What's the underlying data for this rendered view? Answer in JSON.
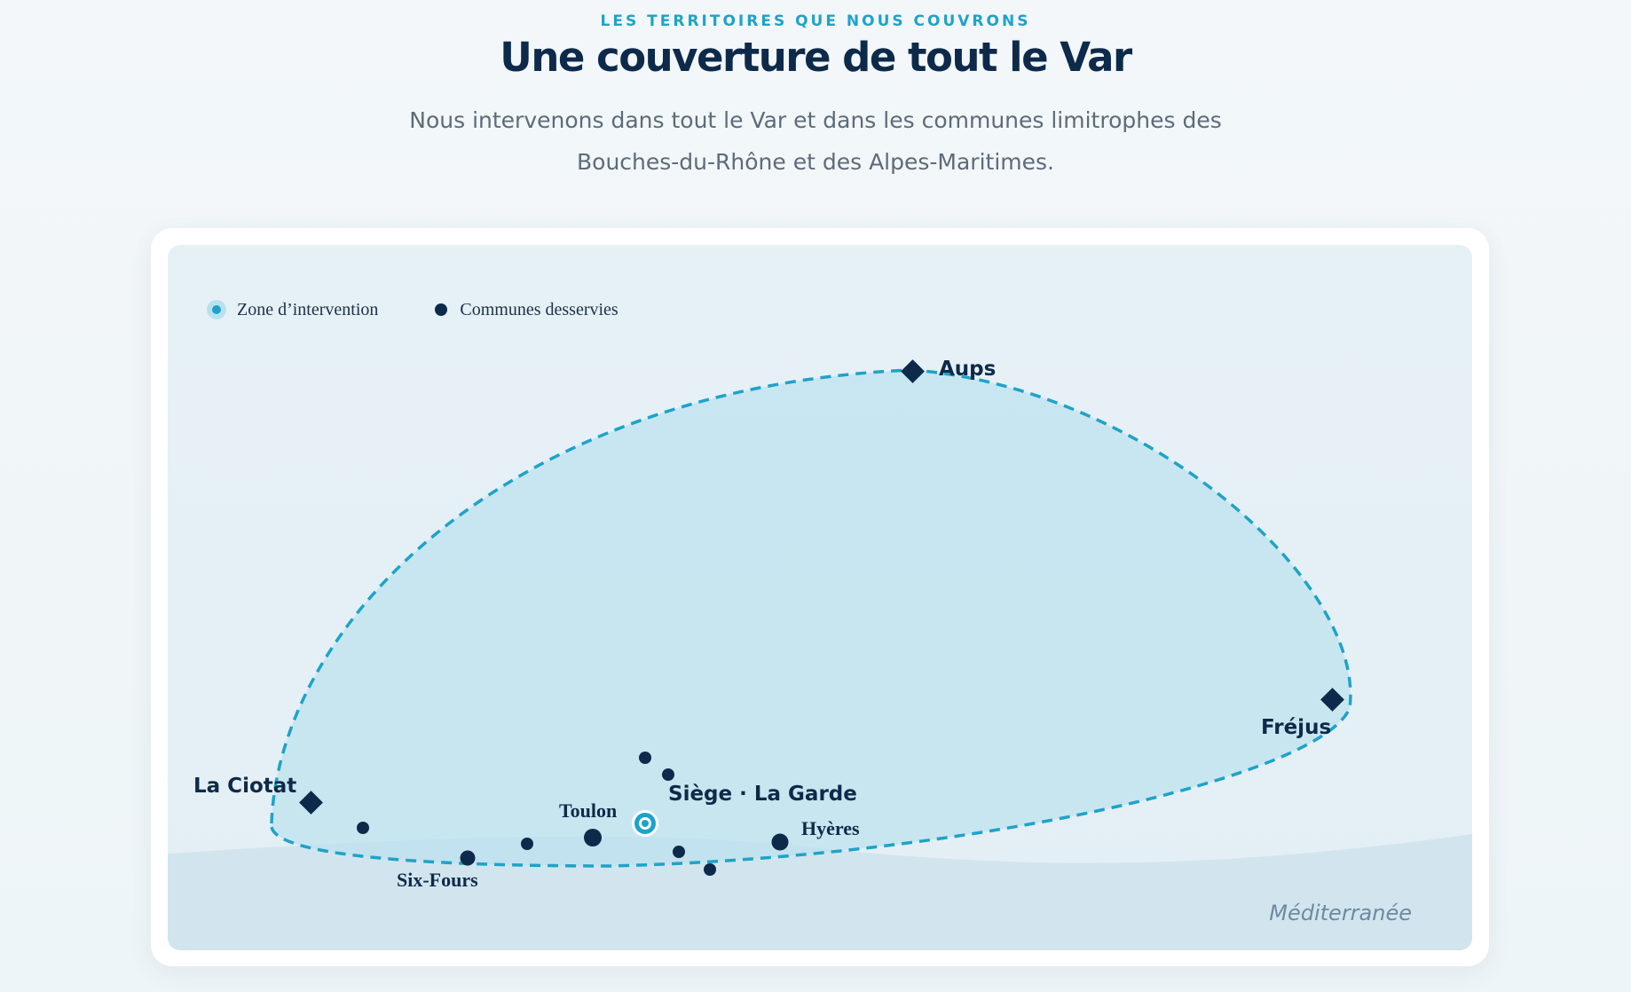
{
  "header": {
    "eyebrow": "LES TERRITOIRES QUE NOUS COUVRONS",
    "title": "Une couverture de tout le Var",
    "subtitle": "Nous intervenons dans tout le Var et dans les communes limitrophes des Bouches-du-Rhône et des Alpes-Maritimes."
  },
  "map": {
    "legend": {
      "zone_label": "Zone d’intervention",
      "communes_label": "Communes desservies"
    },
    "boundary_towns": [
      {
        "name": "Aups",
        "marker": "diamond-icon"
      },
      {
        "name": "Fréjus",
        "marker": "diamond-icon"
      },
      {
        "name": "La Ciotat",
        "marker": "diamond-icon"
      }
    ],
    "headquarters": {
      "name": "Siège · La Garde",
      "marker": "target-icon"
    },
    "labeled_communes": [
      "Toulon",
      "Hyères",
      "Six-Fours"
    ],
    "unlabeled_commune_count": 6,
    "sea_label": "Méditerranée",
    "colors": {
      "accent": "#1ea3c8",
      "navy": "#0e2a4a",
      "zone_fill": "#c6e6f0",
      "sea": "#d2e5ef"
    }
  }
}
